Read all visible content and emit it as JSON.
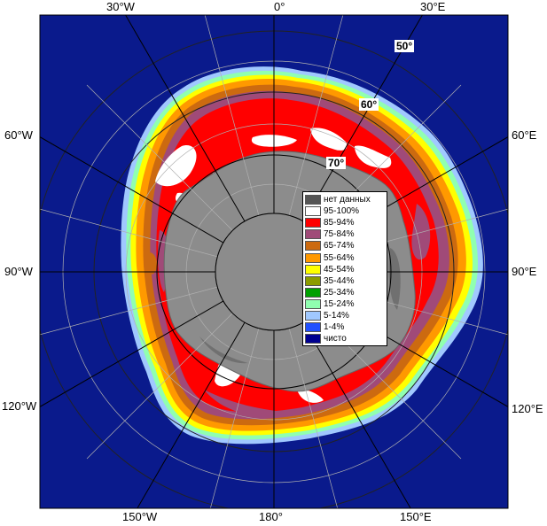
{
  "map": {
    "longitude_labels": {
      "top": [
        "30°W",
        "0°",
        "30°E"
      ],
      "bottom": [
        "150°W",
        "180°",
        "150°E"
      ],
      "left": [
        "60°W",
        "90°W",
        "120°W"
      ],
      "right": [
        "60°E",
        "90°E",
        "120°E"
      ]
    },
    "latitude_labels": [
      "50°",
      "60°",
      "70°"
    ],
    "colors": {
      "ocean": "#0a1a8c",
      "land": "#8c8c8c",
      "ice_concentrations": [
        "#ffffff",
        "#ff0000",
        "#a04a78",
        "#cc6a10",
        "#ff9900",
        "#ffff00",
        "#8c9c00",
        "#00a000",
        "#90ffb0",
        "#a0c8ff",
        "#2050ff",
        "#000090"
      ]
    }
  },
  "legend": {
    "items": [
      {
        "label": "нет данных",
        "color": "#555555"
      },
      {
        "label": "95-100%",
        "color": "#ffffff"
      },
      {
        "label": "85-94%",
        "color": "#ff0000"
      },
      {
        "label": "75-84%",
        "color": "#a04a78"
      },
      {
        "label": "65-74%",
        "color": "#cc6a10"
      },
      {
        "label": "55-64%",
        "color": "#ff9900"
      },
      {
        "label": "45-54%",
        "color": "#ffff00"
      },
      {
        "label": "35-44%",
        "color": "#8c9c00"
      },
      {
        "label": "25-34%",
        "color": "#00a000"
      },
      {
        "label": "15-24%",
        "color": "#90ffb0"
      },
      {
        "label": "5-14%",
        "color": "#a0c8ff"
      },
      {
        "label": "1-4%",
        "color": "#2050ff"
      },
      {
        "label": "чисто",
        "color": "#000090"
      }
    ]
  }
}
